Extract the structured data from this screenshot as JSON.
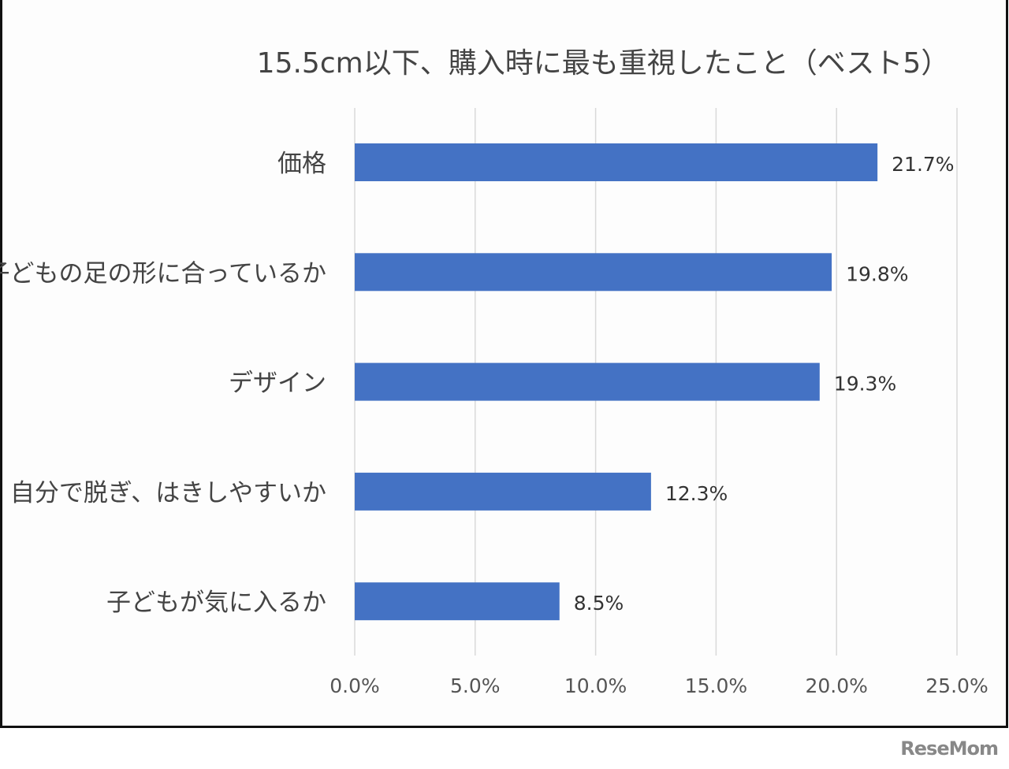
{
  "chart_data": {
    "type": "bar",
    "orientation": "horizontal",
    "title": "15.5cm以下、購入時に最も重視したこと（ベスト5）",
    "categories": [
      "価格",
      "子どもの足の形に合っているか",
      "デザイン",
      "自分で脱ぎ、はきしやすいか",
      "子どもが気に入るか"
    ],
    "values": [
      21.7,
      19.8,
      19.3,
      12.3,
      8.5
    ],
    "data_labels": [
      "21.7%",
      "19.8%",
      "19.3%",
      "12.3%",
      "8.5%"
    ],
    "xlim": [
      0,
      25
    ],
    "xticks": [
      0,
      5,
      10,
      15,
      20,
      25
    ],
    "xtick_labels": [
      "0.0%",
      "5.0%",
      "10.0%",
      "15.0%",
      "20.0%",
      "25.0%"
    ],
    "grid": true,
    "bar_color": "#4472c4",
    "xlabel": "",
    "ylabel": ""
  },
  "watermark": "ReseMom"
}
